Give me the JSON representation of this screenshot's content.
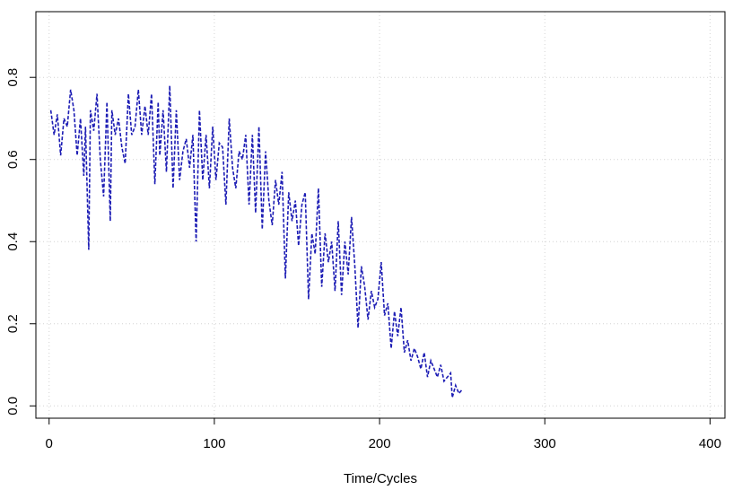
{
  "chart_data": {
    "type": "line",
    "title": "",
    "xlabel": "Time/Cycles",
    "ylabel": "",
    "xlim": [
      -8,
      409
    ],
    "ylim": [
      -0.03,
      0.96
    ],
    "xticks": [
      0,
      100,
      200,
      300,
      400
    ],
    "yticks": [
      0.0,
      0.2,
      0.4,
      0.6,
      0.8
    ],
    "xtick_labels": [
      "0",
      "100",
      "200",
      "300",
      "400"
    ],
    "ytick_labels": [
      "0.0",
      "0.2",
      "0.4",
      "0.6",
      "0.8"
    ],
    "grid": true,
    "series": [
      {
        "line_style": "dashed",
        "color": "#1c1cb4",
        "x": [
          1,
          3,
          5,
          7,
          9,
          11,
          13,
          15,
          17,
          19,
          21,
          22,
          24,
          25,
          27,
          29,
          31,
          33,
          35,
          37,
          38,
          40,
          42,
          44,
          46,
          48,
          50,
          52,
          54,
          56,
          58,
          60,
          62,
          64,
          66,
          67,
          69,
          71,
          73,
          75,
          77,
          79,
          81,
          83,
          85,
          87,
          89,
          91,
          93,
          95,
          97,
          99,
          101,
          103,
          105,
          107,
          109,
          111,
          113,
          115,
          117,
          119,
          121,
          123,
          125,
          127,
          129,
          131,
          133,
          135,
          137,
          139,
          141,
          143,
          145,
          147,
          149,
          151,
          153,
          155,
          157,
          159,
          161,
          163,
          165,
          167,
          169,
          171,
          173,
          175,
          177,
          179,
          181,
          183,
          185,
          187,
          189,
          191,
          193,
          195,
          197,
          199,
          201,
          203,
          205,
          207,
          209,
          211,
          213,
          215,
          217,
          219,
          221,
          223,
          225,
          227,
          229,
          231,
          233,
          235,
          237,
          239,
          241,
          243,
          244,
          246,
          248,
          250
        ],
        "y": [
          0.72,
          0.66,
          0.71,
          0.61,
          0.7,
          0.68,
          0.77,
          0.72,
          0.61,
          0.7,
          0.56,
          0.68,
          0.38,
          0.72,
          0.67,
          0.76,
          0.6,
          0.51,
          0.74,
          0.45,
          0.72,
          0.66,
          0.7,
          0.63,
          0.59,
          0.76,
          0.66,
          0.68,
          0.77,
          0.66,
          0.73,
          0.66,
          0.76,
          0.54,
          0.74,
          0.61,
          0.72,
          0.57,
          0.78,
          0.53,
          0.72,
          0.55,
          0.62,
          0.65,
          0.58,
          0.66,
          0.4,
          0.72,
          0.55,
          0.66,
          0.53,
          0.68,
          0.55,
          0.64,
          0.63,
          0.49,
          0.7,
          0.58,
          0.53,
          0.62,
          0.6,
          0.66,
          0.49,
          0.66,
          0.47,
          0.68,
          0.43,
          0.62,
          0.5,
          0.44,
          0.55,
          0.49,
          0.57,
          0.31,
          0.52,
          0.45,
          0.5,
          0.39,
          0.49,
          0.52,
          0.26,
          0.42,
          0.37,
          0.53,
          0.29,
          0.42,
          0.35,
          0.4,
          0.28,
          0.45,
          0.27,
          0.4,
          0.32,
          0.46,
          0.34,
          0.19,
          0.34,
          0.29,
          0.21,
          0.28,
          0.24,
          0.26,
          0.35,
          0.22,
          0.25,
          0.14,
          0.23,
          0.17,
          0.24,
          0.13,
          0.16,
          0.11,
          0.14,
          0.12,
          0.09,
          0.13,
          0.07,
          0.11,
          0.09,
          0.07,
          0.1,
          0.06,
          0.07,
          0.08,
          0.02,
          0.05,
          0.03,
          0.04
        ]
      }
    ]
  }
}
